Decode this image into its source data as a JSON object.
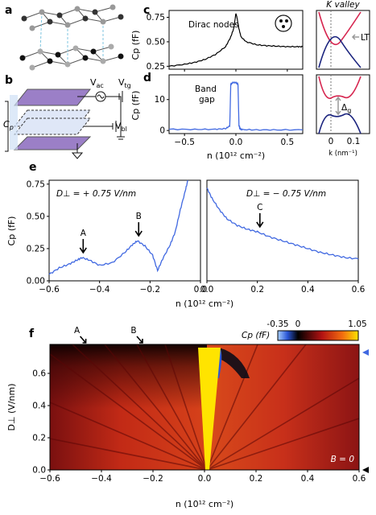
{
  "panels": {
    "a": {
      "label": "a"
    },
    "b": {
      "label": "b",
      "v_ac": "V",
      "v_ac_sub": "ac",
      "v_tg": "V",
      "v_tg_sub": "tg",
      "v_bl": "V",
      "v_bl_sub": "bl",
      "cp": "C",
      "cp_sub": "p"
    },
    "c": {
      "label": "c",
      "annotation": "Dirac nodes",
      "kvalley": "K valley",
      "lt": "LT"
    },
    "d": {
      "label": "d",
      "annotation": "Band gap",
      "gap": "Δ",
      "gap_sub": "g",
      "kaxis": "k (nm⁻¹)"
    },
    "e": {
      "label": "e",
      "left_title": "D⊥ = + 0.75 V/nm",
      "right_title": "D⊥ = − 0.75 V/nm",
      "markers": [
        "A",
        "B",
        "C"
      ]
    },
    "f": {
      "label": "f",
      "markers": [
        "A",
        "B"
      ],
      "cbar_label": "Cp (fF)",
      "bfield": "B = 0"
    }
  },
  "colors": {
    "blue_trace": "#4169e1",
    "black_trace": "#000000",
    "band_red": "#d6254f",
    "band_blue": "#1a237e",
    "marker_blue": "#4169e1"
  },
  "chart_data": [
    {
      "id": "c",
      "type": "line",
      "xlabel": "n (10¹² cm⁻²)",
      "ylabel": "Cp (fF)",
      "xlim": [
        -0.65,
        0.65
      ],
      "ylim": [
        0.22,
        0.82
      ],
      "xticks": [
        -0.5,
        0.0,
        0.5
      ],
      "yticks": [
        0.25,
        0.5,
        0.75
      ],
      "series": [
        {
          "x": [
            -0.65,
            -0.5,
            -0.4,
            -0.3,
            -0.2,
            -0.1,
            -0.05,
            -0.02,
            0.0,
            0.01,
            0.03,
            0.05,
            0.1,
            0.2,
            0.3,
            0.4,
            0.5,
            0.6,
            0.65
          ],
          "y": [
            0.25,
            0.27,
            0.29,
            0.32,
            0.37,
            0.45,
            0.55,
            0.64,
            0.79,
            0.75,
            0.63,
            0.55,
            0.5,
            0.47,
            0.46,
            0.455,
            0.45,
            0.45,
            0.45
          ]
        }
      ]
    },
    {
      "id": "d",
      "type": "line",
      "xlabel": "n (10¹² cm⁻²)",
      "ylabel": "Cp (fF)",
      "xlim": [
        -0.65,
        0.65
      ],
      "ylim": [
        -1,
        18
      ],
      "xticks": [
        -0.5,
        0.0,
        0.5
      ],
      "yticks": [
        0,
        10
      ],
      "series": [
        {
          "x": [
            -0.65,
            -0.4,
            -0.2,
            -0.1,
            -0.06,
            -0.05,
            -0.03,
            0.0,
            0.02,
            0.03,
            0.04,
            0.06,
            0.2,
            0.4,
            0.65
          ],
          "y": [
            0.4,
            0.35,
            0.4,
            0.6,
            1.5,
            15,
            15.5,
            15.5,
            15,
            1.5,
            0.6,
            0.3,
            0.2,
            0.2,
            0.2
          ]
        }
      ]
    },
    {
      "id": "e-left",
      "type": "line",
      "xlabel": "n (10¹² cm⁻²)",
      "ylabel": "Cp (fF)",
      "xlim": [
        -0.6,
        0.0
      ],
      "ylim": [
        0,
        0.78
      ],
      "xticks": [
        -0.6,
        -0.4,
        -0.2,
        0.0
      ],
      "yticks": [
        0.0,
        0.25,
        0.5,
        0.75
      ],
      "series": [
        {
          "x": [
            -0.6,
            -0.56,
            -0.52,
            -0.49,
            -0.47,
            -0.44,
            -0.4,
            -0.35,
            -0.3,
            -0.27,
            -0.25,
            -0.22,
            -0.19,
            -0.17,
            -0.15,
            -0.12,
            -0.1,
            -0.08,
            -0.06,
            -0.05
          ],
          "y": [
            0.05,
            0.1,
            0.13,
            0.16,
            0.18,
            0.16,
            0.12,
            0.14,
            0.22,
            0.28,
            0.31,
            0.27,
            0.2,
            0.08,
            0.17,
            0.28,
            0.38,
            0.55,
            0.7,
            0.78
          ]
        }
      ]
    },
    {
      "id": "e-right",
      "type": "line",
      "xlabel": "n (10¹² cm⁻²)",
      "xlim": [
        0.0,
        0.6
      ],
      "ylim": [
        0,
        0.78
      ],
      "xticks": [
        0.0,
        0.2,
        0.4,
        0.6
      ],
      "series": [
        {
          "x": [
            0.0,
            0.02,
            0.05,
            0.08,
            0.12,
            0.16,
            0.2,
            0.25,
            0.3,
            0.35,
            0.4,
            0.45,
            0.5,
            0.55,
            0.6
          ],
          "y": [
            0.72,
            0.64,
            0.55,
            0.48,
            0.43,
            0.4,
            0.38,
            0.34,
            0.31,
            0.28,
            0.25,
            0.22,
            0.2,
            0.18,
            0.17
          ]
        }
      ]
    },
    {
      "id": "f",
      "type": "heatmap",
      "xlabel": "n (10¹² cm⁻²)",
      "ylabel": "D⊥ (V/nm)",
      "xlim": [
        -0.6,
        0.6
      ],
      "ylim": [
        0.0,
        0.78
      ],
      "xticks": [
        -0.6,
        -0.4,
        -0.2,
        0.0,
        0.2,
        0.4,
        0.6
      ],
      "yticks": [
        0.0,
        0.2,
        0.4,
        0.6
      ],
      "colorbar": {
        "min": -0.35,
        "mid": 0,
        "max": 1.05,
        "ticks": [
          "-0.35",
          "0",
          "1.05"
        ]
      }
    }
  ]
}
